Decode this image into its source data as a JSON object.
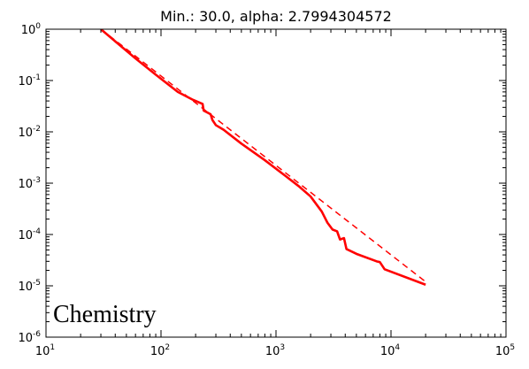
{
  "chart_data": {
    "type": "line",
    "title": "Min.: 30.0, alpha: 2.7994304572",
    "annotation": "Chemistry",
    "xscale": "log",
    "yscale": "log",
    "xlim": [
      10,
      100000
    ],
    "ylim": [
      1e-06,
      1
    ],
    "grid": false,
    "legend": "none",
    "x_ticks": [
      {
        "value": 10,
        "base": "10",
        "exp": "1"
      },
      {
        "value": 100,
        "base": "10",
        "exp": "2"
      },
      {
        "value": 1000,
        "base": "10",
        "exp": "3"
      },
      {
        "value": 10000,
        "base": "10",
        "exp": "4"
      },
      {
        "value": 100000,
        "base": "10",
        "exp": "5"
      }
    ],
    "y_ticks": [
      {
        "value": 1,
        "base": "10",
        "exp": "0"
      },
      {
        "value": 0.1,
        "base": "10",
        "exp": "-1"
      },
      {
        "value": 0.01,
        "base": "10",
        "exp": "-2"
      },
      {
        "value": 0.001,
        "base": "10",
        "exp": "-3"
      },
      {
        "value": 0.0001,
        "base": "10",
        "exp": "-4"
      },
      {
        "value": 1e-05,
        "base": "10",
        "exp": "-5"
      },
      {
        "value": 1e-06,
        "base": "10",
        "exp": "-6"
      }
    ],
    "series": [
      {
        "style": "solid",
        "color": "#ff0000",
        "points": [
          [
            30,
            1.0
          ],
          [
            40,
            0.58
          ],
          [
            60,
            0.27
          ],
          [
            90,
            0.13
          ],
          [
            140,
            0.06
          ],
          [
            190,
            0.042
          ],
          [
            230,
            0.035
          ],
          [
            235,
            0.026
          ],
          [
            270,
            0.022
          ],
          [
            280,
            0.017
          ],
          [
            300,
            0.0135
          ],
          [
            350,
            0.011
          ],
          [
            500,
            0.0059
          ],
          [
            800,
            0.0028
          ],
          [
            1200,
            0.0014
          ],
          [
            1600,
            0.00085
          ],
          [
            2000,
            0.00055
          ],
          [
            2500,
            0.00028
          ],
          [
            2800,
            0.00017
          ],
          [
            3100,
            0.000125
          ],
          [
            3400,
            0.000115
          ],
          [
            3600,
            8e-05
          ],
          [
            3900,
            8.5e-05
          ],
          [
            4100,
            5.2e-05
          ],
          [
            5000,
            4.2e-05
          ],
          [
            7500,
            3e-05
          ],
          [
            8000,
            2.9e-05
          ],
          [
            8800,
            2.1e-05
          ],
          [
            20000,
            1.05e-05
          ]
        ]
      },
      {
        "style": "dashed",
        "color": "#ff0000",
        "points": [
          [
            30,
            1.0
          ],
          [
            20000,
            1.2e-05
          ]
        ]
      }
    ]
  }
}
